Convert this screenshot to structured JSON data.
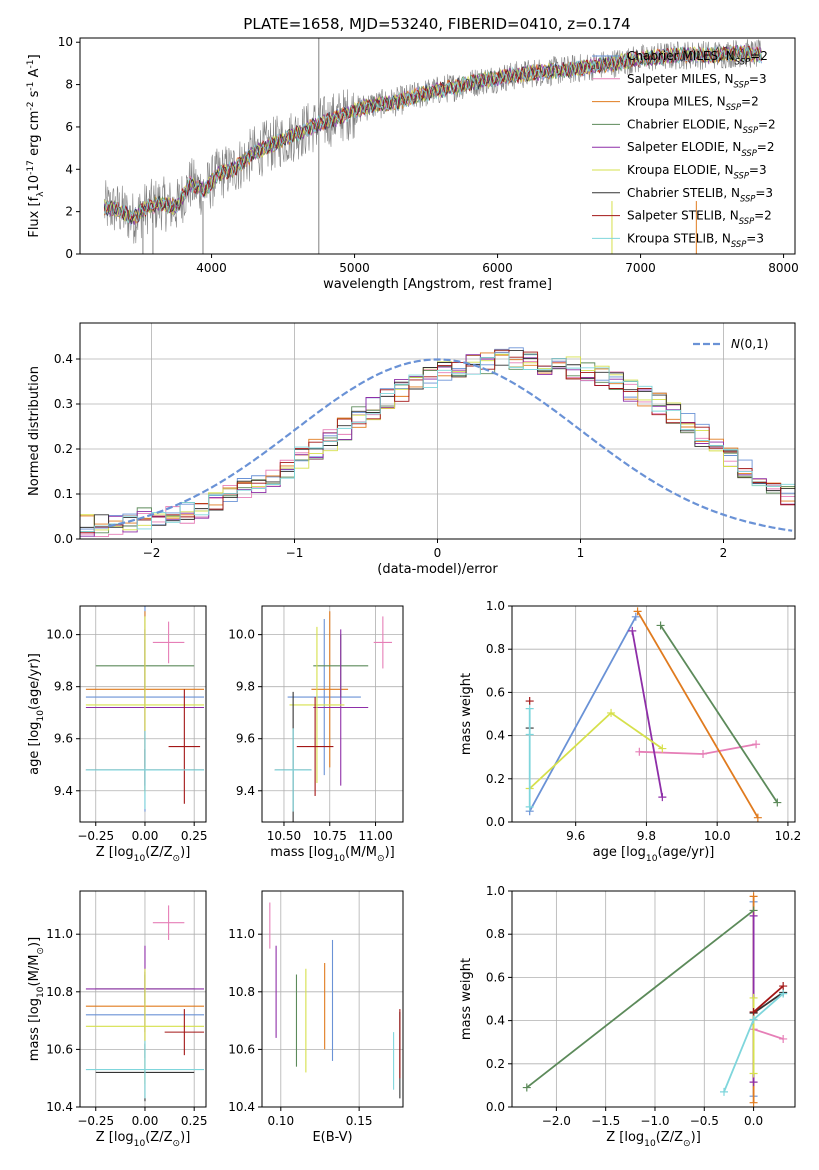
{
  "chart_data": [
    {
      "id": "spectrum",
      "type": "line",
      "title": "PLATE=1658, MJD=53240, FIBERID=0410, z=0.174",
      "xlabel": "wavelength [Angstrom, rest frame]",
      "ylabel": "Flux [f$_\\lambda$10$^{-17}$ erg cm$^{-2}$ s$^{-1}$ A$^{-1}$]",
      "xlim": [
        3080,
        8080
      ],
      "ylim": [
        0,
        10.2
      ],
      "xticks": [
        4000,
        5000,
        6000,
        7000,
        8000
      ],
      "yticks": [
        0,
        2,
        4,
        6,
        8,
        10
      ],
      "grid": false,
      "legend_position": "top-right",
      "data_color": "#808080",
      "continuum": {
        "x": [
          3250,
          3350,
          3450,
          3550,
          3650,
          3750,
          3850,
          3950,
          4050,
          4150,
          4300,
          4500,
          4700,
          4900,
          5100,
          5300,
          5500,
          5700,
          5900,
          6100,
          6300,
          6500,
          6700,
          6900,
          7100,
          7300,
          7500,
          7700,
          7850
        ],
        "y": [
          2.2,
          2.1,
          1.7,
          2.2,
          2.4,
          2.2,
          3.3,
          3.0,
          3.8,
          4.0,
          4.8,
          5.4,
          6.0,
          6.5,
          7.0,
          7.2,
          7.6,
          7.9,
          8.2,
          8.4,
          8.6,
          8.7,
          8.9,
          9.1,
          9.3,
          9.4,
          9.4,
          9.5,
          9.4
        ]
      },
      "series": [
        {
          "name": "Chabrier MILES, N$_{SSP}$=2",
          "color": "#6a92d6"
        },
        {
          "name": "Salpeter MILES, N$_{SSP}$=3",
          "color": "#e67fb7"
        },
        {
          "name": "Kroupa MILES, N$_{SSP}$=2",
          "color": "#e07b1f"
        },
        {
          "name": "Chabrier ELODIE, N$_{SSP}$=2",
          "color": "#5c8a5a"
        },
        {
          "name": "Salpeter ELODIE, N$_{SSP}$=2",
          "color": "#8e2ea8"
        },
        {
          "name": "Kroupa ELODIE, N$_{SSP}$=3",
          "color": "#d6e04c"
        },
        {
          "name": "Chabrier STELIB, N$_{SSP}$=3",
          "color": "#333333"
        },
        {
          "name": "Salpeter STELIB, N$_{SSP}$=2",
          "color": "#a31616"
        },
        {
          "name": "Kroupa STELIB, N$_{SSP}$=3",
          "color": "#7fd6dc"
        }
      ]
    },
    {
      "id": "residuals",
      "type": "line",
      "xlabel": "(data-model)/error",
      "ylabel": "Normed distribution",
      "xlim": [
        -2.5,
        2.5
      ],
      "ylim": [
        0,
        0.48
      ],
      "xticks": [
        -2,
        -1,
        0,
        1,
        2
      ],
      "yticks": [
        0.0,
        0.1,
        0.2,
        0.3,
        0.4
      ],
      "grid": true,
      "legend_position": "top-right",
      "gaussian": {
        "name": "$\\mathcal{N}(0,1)$",
        "mu": 0,
        "sigma": 1,
        "color": "#6a92d6"
      },
      "hist_bin_width": 0.1,
      "hist_x0": -2.5,
      "hist_base": [
        0.03,
        0.03,
        0.035,
        0.04,
        0.045,
        0.05,
        0.055,
        0.06,
        0.07,
        0.08,
        0.095,
        0.11,
        0.125,
        0.14,
        0.16,
        0.18,
        0.2,
        0.22,
        0.245,
        0.27,
        0.29,
        0.31,
        0.33,
        0.35,
        0.36,
        0.37,
        0.38,
        0.39,
        0.39,
        0.4,
        0.4,
        0.4,
        0.39,
        0.39,
        0.38,
        0.37,
        0.36,
        0.35,
        0.33,
        0.32,
        0.3,
        0.28,
        0.255,
        0.23,
        0.205,
        0.18,
        0.155,
        0.135,
        0.115,
        0.1,
        0.085,
        0.07,
        0.06,
        0.05,
        0.045,
        0.04,
        0.035,
        0.03,
        0.028,
        0.026,
        0.024,
        0.022,
        0.02,
        0.02,
        0.02,
        0.02,
        0.02,
        0.02,
        0.02,
        0.02
      ]
    },
    {
      "id": "age-vs-Z",
      "type": "scatter",
      "xlabel": "Z [log$_{10}$(Z/Z$_\\odot$)]",
      "ylabel": "age  [log$_{10}$(age/yr)]",
      "xlim": [
        -0.33,
        0.31
      ],
      "ylim": [
        9.28,
        10.11
      ],
      "xticks": [
        -0.25,
        0.0,
        0.25
      ],
      "yticks": [
        9.4,
        9.6,
        9.8,
        10.0
      ],
      "grid": true,
      "points": [
        {
          "x": 0.0,
          "y": 9.76,
          "xerr": 0.3,
          "yerr": 0.44,
          "color": "#6a92d6"
        },
        {
          "x": 0.12,
          "y": 9.97,
          "xerr": 0.08,
          "yerr": 0.08,
          "color": "#e67fb7"
        },
        {
          "x": 0.0,
          "y": 9.79,
          "xerr": 0.3,
          "yerr": 0.3,
          "color": "#e07b1f"
        },
        {
          "x": 0.0,
          "y": 9.88,
          "xerr": 0.25,
          "yerr": 0.1,
          "color": "#5c8a5a"
        },
        {
          "x": 0.0,
          "y": 9.72,
          "xerr": 0.3,
          "yerr": 0.3,
          "color": "#8e2ea8"
        },
        {
          "x": 0.0,
          "y": 9.73,
          "xerr": 0.3,
          "yerr": 0.34,
          "color": "#d6e04c"
        },
        {
          "x": 0.0,
          "y": 9.48,
          "xerr": 0.3,
          "yerr": 0.08,
          "color": "#333333"
        },
        {
          "x": 0.2,
          "y": 9.57,
          "xerr": 0.08,
          "yerr": 0.22,
          "color": "#a31616"
        },
        {
          "x": 0.0,
          "y": 9.48,
          "xerr": 0.3,
          "yerr": 0.15,
          "color": "#7fd6dc"
        }
      ]
    },
    {
      "id": "age-vs-mass",
      "type": "scatter",
      "xlabel": "mass [log$_{10}$(M/M$_\\odot$)]",
      "ylabel": "",
      "xlim": [
        10.38,
        11.15
      ],
      "ylim": [
        9.28,
        10.11
      ],
      "xticks": [
        10.5,
        10.75,
        11.0
      ],
      "yticks": [
        9.4,
        9.6,
        9.8,
        10.0
      ],
      "grid": true,
      "points": [
        {
          "x": 10.72,
          "y": 9.76,
          "xerr": 0.2,
          "yerr": 0.3,
          "color": "#6a92d6"
        },
        {
          "x": 11.04,
          "y": 9.97,
          "xerr": 0.05,
          "yerr": 0.1,
          "color": "#e67fb7"
        },
        {
          "x": 10.75,
          "y": 9.79,
          "xerr": 0.1,
          "yerr": 0.3,
          "color": "#e07b1f"
        },
        {
          "x": 10.81,
          "y": 9.88,
          "xerr": 0.15,
          "yerr": 0.12,
          "color": "#5c8a5a"
        },
        {
          "x": 10.81,
          "y": 9.72,
          "xerr": 0.15,
          "yerr": 0.3,
          "color": "#8e2ea8"
        },
        {
          "x": 10.68,
          "y": 9.73,
          "xerr": 0.15,
          "yerr": 0.3,
          "color": "#d6e04c"
        },
        {
          "x": 10.55,
          "y": 9.48,
          "xerr": 0.1,
          "yerr": 0.3,
          "color": "#333333"
        },
        {
          "x": 10.67,
          "y": 9.57,
          "xerr": 0.1,
          "yerr": 0.19,
          "color": "#a31616"
        },
        {
          "x": 10.55,
          "y": 9.48,
          "xerr": 0.1,
          "yerr": 0.16,
          "color": "#7fd6dc"
        }
      ]
    },
    {
      "id": "weight-vs-age",
      "type": "line",
      "xlabel": "age  [log$_{10}$(age/yr)]",
      "ylabel": "mass weight",
      "xlim": [
        9.42,
        10.22
      ],
      "ylim": [
        0,
        1
      ],
      "xticks": [
        9.6,
        9.8,
        10.0,
        10.2
      ],
      "yticks": [
        0.0,
        0.2,
        0.4,
        0.6,
        0.8,
        1.0
      ],
      "grid": true,
      "series": [
        {
          "color": "#6a92d6",
          "x": [
            9.47,
            9.77
          ],
          "y": [
            0.05,
            0.95
          ]
        },
        {
          "color": "#e67fb7",
          "x": [
            9.78,
            9.96,
            10.11
          ],
          "y": [
            0.325,
            0.315,
            0.36
          ]
        },
        {
          "color": "#e07b1f",
          "x": [
            9.775,
            10.115
          ],
          "y": [
            0.975,
            0.02
          ]
        },
        {
          "color": "#5c8a5a",
          "x": [
            9.84,
            10.17
          ],
          "y": [
            0.91,
            0.09
          ]
        },
        {
          "color": "#8e2ea8",
          "x": [
            9.76,
            9.845
          ],
          "y": [
            0.885,
            0.115
          ]
        },
        {
          "color": "#d6e04c",
          "x": [
            9.47,
            9.7,
            9.845
          ],
          "y": [
            0.155,
            0.505,
            0.34
          ]
        },
        {
          "color": "#333333",
          "x": [
            9.47
          ],
          "y": [
            0.435
          ]
        },
        {
          "color": "#a31616",
          "x": [
            9.47
          ],
          "y": [
            0.56
          ]
        },
        {
          "color": "#7fd6dc",
          "x": [
            9.47,
            9.47,
            9.47
          ],
          "y": [
            0.07,
            0.405,
            0.525
          ]
        }
      ]
    },
    {
      "id": "mass-vs-Z",
      "type": "scatter",
      "xlabel": "Z [log$_{10}$(Z/Z$_\\odot$)]",
      "ylabel": "mass [log$_{10}$(M/M$_\\odot$)]",
      "xlim": [
        -0.33,
        0.31
      ],
      "ylim": [
        10.4,
        11.15
      ],
      "xticks": [
        -0.25,
        0.0,
        0.25
      ],
      "yticks": [
        10.4,
        10.6,
        10.8,
        11.0
      ],
      "grid": true,
      "points": [
        {
          "x": 0.0,
          "y": 10.72,
          "xerr": 0.3,
          "yerr": 0.15,
          "color": "#6a92d6"
        },
        {
          "x": 0.12,
          "y": 11.04,
          "xerr": 0.08,
          "yerr": 0.06,
          "color": "#e67fb7"
        },
        {
          "x": 0.0,
          "y": 10.75,
          "xerr": 0.3,
          "yerr": 0.12,
          "color": "#e07b1f"
        },
        {
          "x": 0.0,
          "y": 10.81,
          "xerr": 0.25,
          "yerr": 0.05,
          "color": "#5c8a5a"
        },
        {
          "x": 0.0,
          "y": 10.81,
          "xerr": 0.3,
          "yerr": 0.15,
          "color": "#8e2ea8"
        },
        {
          "x": 0.0,
          "y": 10.68,
          "xerr": 0.3,
          "yerr": 0.2,
          "color": "#d6e04c"
        },
        {
          "x": 0.0,
          "y": 10.52,
          "xerr": 0.25,
          "yerr": 0.1,
          "color": "#333333"
        },
        {
          "x": 0.2,
          "y": 10.66,
          "xerr": 0.1,
          "yerr": 0.08,
          "color": "#a31616"
        },
        {
          "x": 0.0,
          "y": 10.53,
          "xerr": 0.3,
          "yerr": 0.1,
          "color": "#7fd6dc"
        }
      ]
    },
    {
      "id": "mass-vs-ebv",
      "type": "scatter",
      "xlabel": "E(B-V)",
      "ylabel": "",
      "xlim": [
        0.088,
        0.178
      ],
      "ylim": [
        10.4,
        11.15
      ],
      "xticks": [
        0.1,
        0.15
      ],
      "yticks": [
        10.4,
        10.6,
        10.8,
        11.0
      ],
      "grid": true,
      "points": [
        {
          "x": 0.133,
          "y": 10.77,
          "yerr": 0.21,
          "color": "#6a92d6"
        },
        {
          "x": 0.093,
          "y": 11.03,
          "yerr": 0.08,
          "color": "#e67fb7"
        },
        {
          "x": 0.128,
          "y": 10.75,
          "yerr": 0.15,
          "color": "#e07b1f"
        },
        {
          "x": 0.11,
          "y": 10.7,
          "yerr": 0.16,
          "color": "#5c8a5a"
        },
        {
          "x": 0.097,
          "y": 10.8,
          "yerr": 0.16,
          "color": "#8e2ea8"
        },
        {
          "x": 0.116,
          "y": 10.7,
          "yerr": 0.18,
          "color": "#d6e04c"
        },
        {
          "x": 0.176,
          "y": 10.58,
          "yerr": 0.15,
          "color": "#333333"
        },
        {
          "x": 0.176,
          "y": 10.62,
          "yerr": 0.12,
          "color": "#a31616"
        },
        {
          "x": 0.172,
          "y": 10.56,
          "yerr": 0.1,
          "color": "#7fd6dc"
        }
      ]
    },
    {
      "id": "weight-vs-Z",
      "type": "line",
      "xlabel": "Z [log$_{10}$(Z/Z$_\\odot$)]",
      "ylabel": "mass weight",
      "xlim": [
        -2.45,
        0.42
      ],
      "ylim": [
        0,
        1
      ],
      "xticks": [
        -2.0,
        -1.5,
        -1.0,
        -0.5,
        0.0
      ],
      "yticks": [
        0.0,
        0.2,
        0.4,
        0.6,
        0.8,
        1.0
      ],
      "grid": true,
      "series": [
        {
          "color": "#6a92d6",
          "x": [
            0.0,
            0.0
          ],
          "y": [
            0.05,
            0.95
          ]
        },
        {
          "color": "#e67fb7",
          "x": [
            0.0,
            0.3
          ],
          "y": [
            0.36,
            0.315
          ]
        },
        {
          "color": "#e07b1f",
          "x": [
            0.0,
            0.0
          ],
          "y": [
            0.02,
            0.975
          ]
        },
        {
          "color": "#5c8a5a",
          "x": [
            -2.3,
            0.0
          ],
          "y": [
            0.09,
            0.91
          ]
        },
        {
          "color": "#8e2ea8",
          "x": [
            0.0,
            0.0
          ],
          "y": [
            0.115,
            0.885
          ]
        },
        {
          "color": "#d6e04c",
          "x": [
            0.0,
            0.0
          ],
          "y": [
            0.155,
            0.505
          ]
        },
        {
          "color": "#333333",
          "x": [
            0.0,
            0.3
          ],
          "y": [
            0.435,
            0.53
          ]
        },
        {
          "color": "#a31616",
          "x": [
            0.0,
            0.3
          ],
          "y": [
            0.44,
            0.56
          ]
        },
        {
          "color": "#7fd6dc",
          "x": [
            -0.3,
            0.0,
            0.3
          ],
          "y": [
            0.07,
            0.405,
            0.525
          ]
        }
      ]
    }
  ]
}
